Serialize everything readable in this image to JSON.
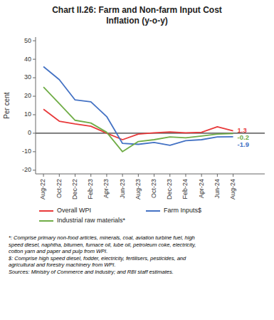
{
  "chart_data": {
    "type": "line",
    "title": "Chart II.26: Farm and Non-farm Input Cost\nInflation (y-o-y)",
    "ylabel": "Per cent",
    "categories": [
      "Aug-22",
      "Oct-22",
      "Dec-22",
      "Feb-23",
      "Apr-23",
      "Jun-23",
      "Aug-23",
      "Oct-23",
      "Dec-23",
      "Feb-24",
      "Apr-24",
      "Jun-24",
      "Aug-24"
    ],
    "series": [
      {
        "name": "Overall WPI",
        "color": "#e8393a",
        "values": [
          13.0,
          6.5,
          5.0,
          3.8,
          0.0,
          -3.5,
          -0.5,
          0.2,
          0.7,
          0.2,
          0.5,
          3.5,
          1.3
        ]
      },
      {
        "name": "Farm Inputs$",
        "color": "#4472c4",
        "values": [
          36.0,
          29.0,
          18.0,
          17.0,
          9.0,
          -5.5,
          -6.0,
          -5.0,
          -6.5,
          -4.0,
          -3.5,
          -2.0,
          -1.9
        ]
      },
      {
        "name": "Industrial raw materials*",
        "color": "#70ad47",
        "values": [
          25.0,
          16.0,
          7.0,
          5.5,
          0.5,
          -10.0,
          -4.5,
          -3.5,
          -2.0,
          -2.5,
          -1.5,
          -0.5,
          -0.2
        ]
      }
    ],
    "annotations": [
      {
        "text": "1.3",
        "x": "Aug-24",
        "y": 1.3,
        "color": "#e8393a"
      },
      {
        "text": "-0.2",
        "x": "Aug-24",
        "y": -0.2,
        "color": "#70ad47"
      },
      {
        "text": "-1.9",
        "x": "Aug-24",
        "y": -1.9,
        "color": "#4472c4"
      }
    ],
    "footnotes": [
      "*: Comprise primary non-food articles, minerals, coal, aviation turbine fuel, high\nspeed diesel, naphtha, bitumen, furnace oil, lube oil, petroleum coke, electricity,\ncotton yarn and paper and pulp from WPI.",
      "$: Comprise high speed diesel, fodder, electricity, fertilisers, pesticides, and\nagricultural and forestry machinery from WPI.",
      "Sources: Ministry of Commerce and Industry; and RBI staff estimates."
    ],
    "ylim": [
      -22,
      52
    ],
    "yticks": [
      -20,
      -10,
      0,
      10,
      20,
      30,
      40,
      50
    ],
    "grid": false,
    "legend": "bottom"
  }
}
